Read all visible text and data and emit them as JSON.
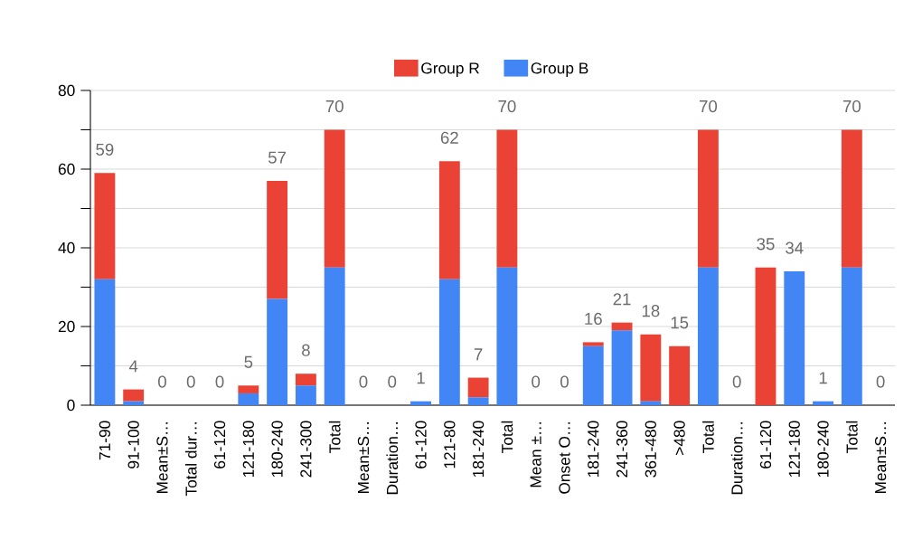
{
  "chart_data": {
    "type": "bar",
    "stacked": true,
    "categories": [
      "71-90",
      "91-100",
      "Mean±S…",
      "Total dur…",
      "61-120",
      "121-180",
      "180-240",
      "241-300",
      "Total",
      "Mean±S…",
      "Duration…",
      "61-120",
      "121-80",
      "181-240",
      "Total",
      "Mean ±…",
      "Onset O…",
      "181-240",
      "241-360",
      "361-480",
      ">480",
      "Total",
      "Duration…",
      "61-120",
      "121-180",
      "180-240",
      "Total",
      "Mean±S…"
    ],
    "series": [
      {
        "name": "Group B",
        "color": "#4285f4",
        "values": [
          32,
          1,
          0,
          0,
          0,
          3,
          27,
          5,
          35,
          0,
          0,
          1,
          32,
          2,
          35,
          0,
          0,
          15,
          19,
          1,
          0,
          35,
          0,
          0,
          34,
          1,
          35,
          0
        ]
      },
      {
        "name": "Group R",
        "color": "#ea4335",
        "values": [
          27,
          3,
          0,
          0,
          0,
          2,
          30,
          3,
          35,
          0,
          0,
          0,
          30,
          5,
          35,
          0,
          0,
          1,
          2,
          17,
          15,
          35,
          0,
          35,
          0,
          0,
          35,
          0
        ]
      }
    ],
    "totals": [
      "59",
      "4",
      "0",
      "0",
      "0",
      "5",
      "57",
      "8",
      "70",
      "0",
      "0",
      "1",
      "62",
      "7",
      "70",
      "0",
      "0",
      "16",
      "21",
      "18",
      "15",
      "70",
      "0",
      "35",
      "34",
      "1",
      "70",
      "0"
    ],
    "ylim": [
      0,
      80
    ],
    "yticks": [
      0,
      {
        "value": 10,
        "label": null
      },
      20,
      {
        "value": 30,
        "label": null
      },
      40,
      {
        "value": 50,
        "label": null
      },
      60,
      {
        "value": 70,
        "label": null
      },
      80
    ],
    "grid": "y",
    "legend": "top"
  }
}
